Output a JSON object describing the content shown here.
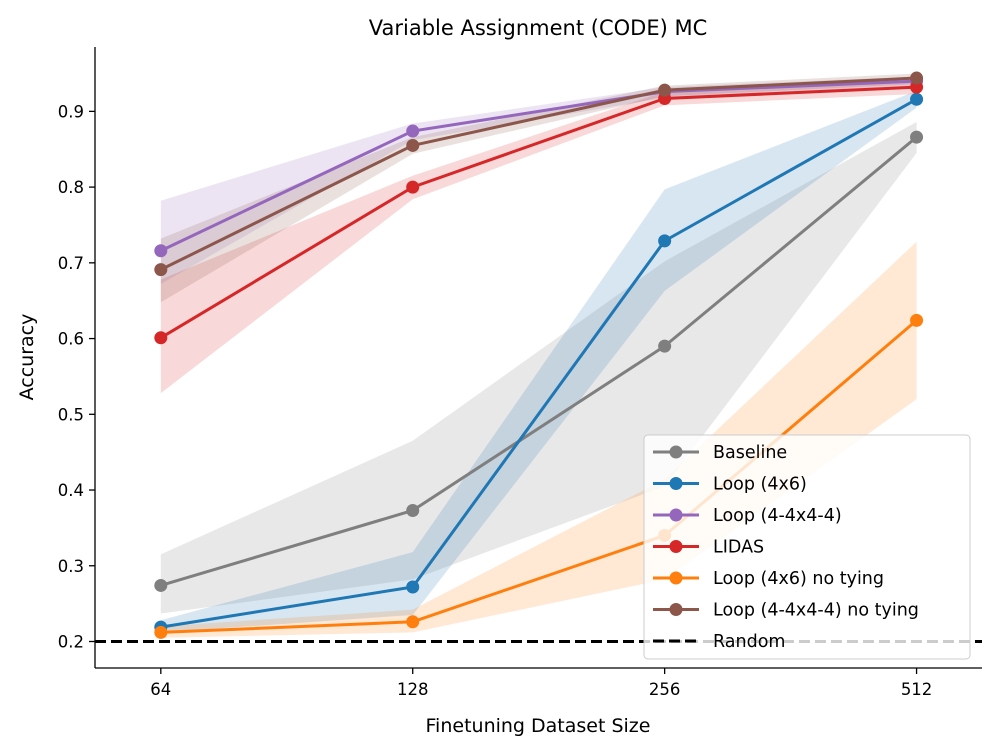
{
  "chart_data": {
    "type": "line",
    "title": "Variable Assignment (CODE) MC",
    "xlabel": "Finetuning Dataset Size",
    "ylabel": "Accuracy",
    "x_scale": "log2",
    "categories": [
      "64",
      "128",
      "256",
      "512"
    ],
    "x": [
      64,
      128,
      256,
      512
    ],
    "ylim": [
      0.165,
      0.985
    ],
    "yticks": [
      "0.2",
      "0.3",
      "0.4",
      "0.5",
      "0.6",
      "0.7",
      "0.8",
      "0.9"
    ],
    "grid": false,
    "legend_position": "lower-right",
    "series": [
      {
        "name": "Baseline",
        "color": "#7f7f7f",
        "values": [
          0.274,
          0.373,
          0.59,
          0.866
        ],
        "lower": [
          0.237,
          0.282,
          0.405,
          0.845
        ],
        "upper": [
          0.315,
          0.465,
          0.702,
          0.886
        ]
      },
      {
        "name": "Loop (4x6)",
        "color": "#1f77b4",
        "values": [
          0.219,
          0.272,
          0.729,
          0.916
        ],
        "lower": [
          0.212,
          0.235,
          0.663,
          0.905
        ],
        "upper": [
          0.228,
          0.318,
          0.797,
          0.927
        ]
      },
      {
        "name": "Loop (4-4x4-4)",
        "color": "#9467bd",
        "values": [
          0.716,
          0.874,
          0.926,
          0.94
        ],
        "lower": [
          0.672,
          0.862,
          0.918,
          0.932
        ],
        "upper": [
          0.782,
          0.884,
          0.932,
          0.946
        ]
      },
      {
        "name": "LIDAS",
        "color": "#d62728",
        "values": [
          0.601,
          0.8,
          0.917,
          0.932
        ],
        "lower": [
          0.528,
          0.784,
          0.908,
          0.923
        ],
        "upper": [
          0.678,
          0.815,
          0.926,
          0.94
        ]
      },
      {
        "name": "Loop (4x6) no tying",
        "color": "#ff7f0e",
        "values": [
          0.212,
          0.226,
          0.34,
          0.624
        ],
        "lower": [
          0.205,
          0.212,
          0.282,
          0.52
        ],
        "upper": [
          0.22,
          0.242,
          0.414,
          0.728
        ]
      },
      {
        "name": "Loop (4-4x4-4) no tying",
        "color": "#8c564b",
        "values": [
          0.691,
          0.855,
          0.928,
          0.944
        ],
        "lower": [
          0.648,
          0.844,
          0.92,
          0.936
        ],
        "upper": [
          0.732,
          0.866,
          0.934,
          0.95
        ]
      }
    ],
    "reference_line": {
      "name": "Random",
      "value": 0.2,
      "color": "#000000",
      "style": "dashed"
    }
  }
}
